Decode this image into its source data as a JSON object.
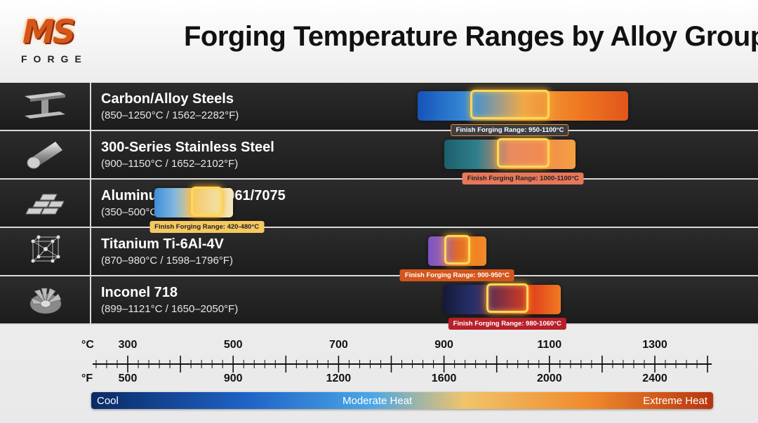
{
  "header": {
    "logo_text": "MS",
    "logo_sub": "FORGE",
    "title": "Forging Temperature Ranges by Alloy Group"
  },
  "chart_data": {
    "type": "bar",
    "title": "Forging Temperature Ranges by Alloy Group",
    "x_axis": {
      "celsius_label": "°C",
      "fahrenheit_label": "°F",
      "min_c": 200,
      "max_c": 1400,
      "celsius_ticks": [
        "300",
        "500",
        "700",
        "900",
        "1100",
        "1300"
      ],
      "fahrenheit_ticks": [
        "500",
        "900",
        "1200",
        "1600",
        "2000",
        "2400"
      ]
    },
    "series": [
      {
        "name": "Carbon/Alloy Steels",
        "range_text": "(850–1250°C / 1562–2282°F)",
        "min": 850,
        "max": 1250,
        "finish_min": 950,
        "finish_max": 1100,
        "finish_label": "Finish Forging Range: 950-1100°C",
        "colors": [
          "#1553b8",
          "#3a8fd9",
          "#f0a848",
          "#f07a22",
          "#e0561c"
        ],
        "icon": "i-beam-icon"
      },
      {
        "name": "300-Series Stainless Steel",
        "range_text": "(900–1150°C / 1652–2102°F)",
        "min": 900,
        "max": 1150,
        "finish_min": 1000,
        "finish_max": 1100,
        "finish_label": "Finish Forging Range: 1000-1100°C",
        "colors": [
          "#1d5f6c",
          "#2f7f8c",
          "#e98a60",
          "#f28b52",
          "#f5a040"
        ],
        "icon": "steel-rod-icon"
      },
      {
        "name": "Aluminum Alloys 6061/7075",
        "range_text": "(350–500°C / 662–932°F)",
        "min": 350,
        "max": 500,
        "finish_min": 420,
        "finish_max": 480,
        "finish_label": "Finish Forging Range: 420-480°C",
        "colors": [
          "#3f8ed8",
          "#7fb6e0",
          "#f6c868",
          "#f2dc9a",
          "#f4e6bf"
        ],
        "icon": "ingot-stack-icon"
      },
      {
        "name": "Titanium Ti-6Al-4V",
        "range_text": "(870–980°C / 1598–1796°F)",
        "min": 870,
        "max": 980,
        "finish_min": 900,
        "finish_max": 950,
        "finish_label": "Finish Forging Range: 900-950°C",
        "colors": [
          "#7b54c6",
          "#9a5fb0",
          "#e06a2a",
          "#f07f22",
          "#f08a2c"
        ],
        "icon": "lattice-icon"
      },
      {
        "name": "Inconel 718",
        "range_text": "(899–1121°C / 1650–2050°F)",
        "min": 899,
        "max": 1121,
        "finish_min": 980,
        "finish_max": 1060,
        "finish_label": "Finish Forging Range: 980-1060°C",
        "colors": [
          "#141a3a",
          "#27306a",
          "#8a3040",
          "#e0401c",
          "#f07a22"
        ],
        "icon": "turbine-icon"
      }
    ],
    "legend": {
      "cool": "Cool",
      "moderate": "Moderate Heat",
      "extreme": "Extreme Heat"
    }
  }
}
